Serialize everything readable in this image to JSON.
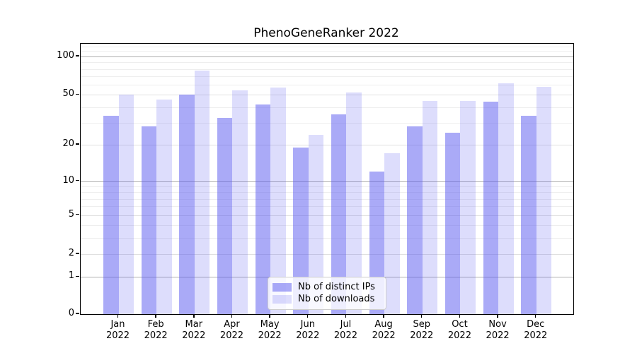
{
  "chart_data": {
    "type": "bar",
    "title": "PhenoGeneRanker 2022",
    "categories": [
      {
        "label": "Jan",
        "sublabel": "2022"
      },
      {
        "label": "Feb",
        "sublabel": "2022"
      },
      {
        "label": "Mar",
        "sublabel": "2022"
      },
      {
        "label": "Apr",
        "sublabel": "2022"
      },
      {
        "label": "May",
        "sublabel": "2022"
      },
      {
        "label": "Jun",
        "sublabel": "2022"
      },
      {
        "label": "Jul",
        "sublabel": "2022"
      },
      {
        "label": "Aug",
        "sublabel": "2022"
      },
      {
        "label": "Sep",
        "sublabel": "2022"
      },
      {
        "label": "Oct",
        "sublabel": "2022"
      },
      {
        "label": "Nov",
        "sublabel": "2022"
      },
      {
        "label": "Dec",
        "sublabel": "2022"
      }
    ],
    "series": [
      {
        "name": "Nb of distinct IPs",
        "color": "rgba(85,85,240,0.5)",
        "values": [
          34,
          28,
          50,
          33,
          42,
          19,
          35,
          12,
          28,
          25,
          44,
          34
        ]
      },
      {
        "name": "Nb of downloads",
        "color": "rgba(85,85,240,0.2)",
        "values": [
          50,
          46,
          78,
          54,
          57,
          24,
          52,
          17,
          45,
          45,
          62,
          58
        ]
      }
    ],
    "yscale": "log1p",
    "yticks": [
      0,
      1,
      2,
      5,
      10,
      20,
      50,
      100
    ],
    "minor_gridlines": [
      3,
      4,
      6,
      7,
      8,
      9,
      30,
      40,
      60,
      70,
      80,
      90,
      110,
      120
    ],
    "mid_gridlines": [
      2,
      5,
      20,
      50
    ],
    "major_gridlines": [
      1,
      10,
      100
    ],
    "ylim": [
      0,
      126
    ],
    "grid": true,
    "legend_position": "lower center",
    "colors": {
      "major_grid": "#b0b0b0",
      "mid_grid": "#e0e0e0",
      "minor_grid": "#eeeeee",
      "spine": "#000000"
    }
  }
}
